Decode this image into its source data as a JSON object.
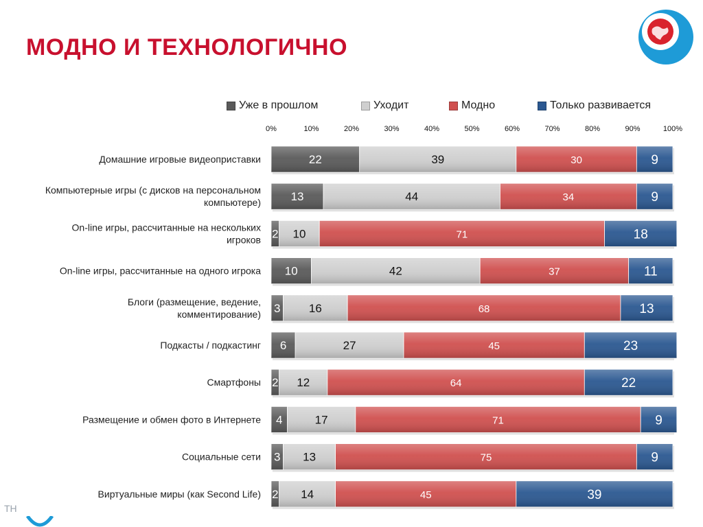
{
  "title": "МОДНО И ТЕХНОЛОГИЧНО",
  "footer_text": "ТН",
  "logo": {
    "icon": "globe-logo-icon",
    "ring_color": "#1e9bd7",
    "globe_color": "#d9232d"
  },
  "chart_data": {
    "type": "bar",
    "orientation": "horizontal",
    "stacked": "percent",
    "categories": [
      [
        "Домашние игровые видеоприставки"
      ],
      [
        "Компьютерные игры (с дисков на персональном",
        "компьютере)"
      ],
      [
        "On-line игры, рассчитанные на нескольких",
        "игроков"
      ],
      [
        "On-line игры, рассчитанные на одного игрока"
      ],
      [
        "Блоги (размещение, ведение,",
        "комментирование)"
      ],
      [
        "Подкасты / подкастинг"
      ],
      [
        "Смартфоны"
      ],
      [
        "Размещение и обмен фото в Интернете"
      ],
      [
        "Социальные сети"
      ],
      [
        "Виртуальные миры (как Second Life)"
      ]
    ],
    "series": [
      {
        "name": "Уже в прошлом",
        "color": "#5a5a5a",
        "label_color": "#ffffff",
        "values": [
          22,
          13,
          2,
          10,
          3,
          6,
          2,
          4,
          3,
          2
        ]
      },
      {
        "name": "Уходит",
        "color": "#cfcfcf",
        "label_color": "#111111",
        "values": [
          39,
          44,
          10,
          42,
          16,
          27,
          12,
          17,
          13,
          14
        ]
      },
      {
        "name": "Модно",
        "color": "#d0504f",
        "label_color": "#ffffff",
        "values": [
          30,
          34,
          71,
          37,
          68,
          45,
          64,
          71,
          75,
          45
        ]
      },
      {
        "name": "Только развивается",
        "color": "#2b5891",
        "label_color": "#ffffff",
        "values": [
          9,
          9,
          18,
          11,
          13,
          23,
          22,
          9,
          9,
          39
        ]
      }
    ],
    "x_ticks": [
      "0%",
      "10%",
      "20%",
      "30%",
      "40%",
      "50%",
      "60%",
      "70%",
      "80%",
      "90%",
      "100%"
    ],
    "xlim": [
      0,
      100
    ],
    "legend_position": "top",
    "grid": false
  }
}
